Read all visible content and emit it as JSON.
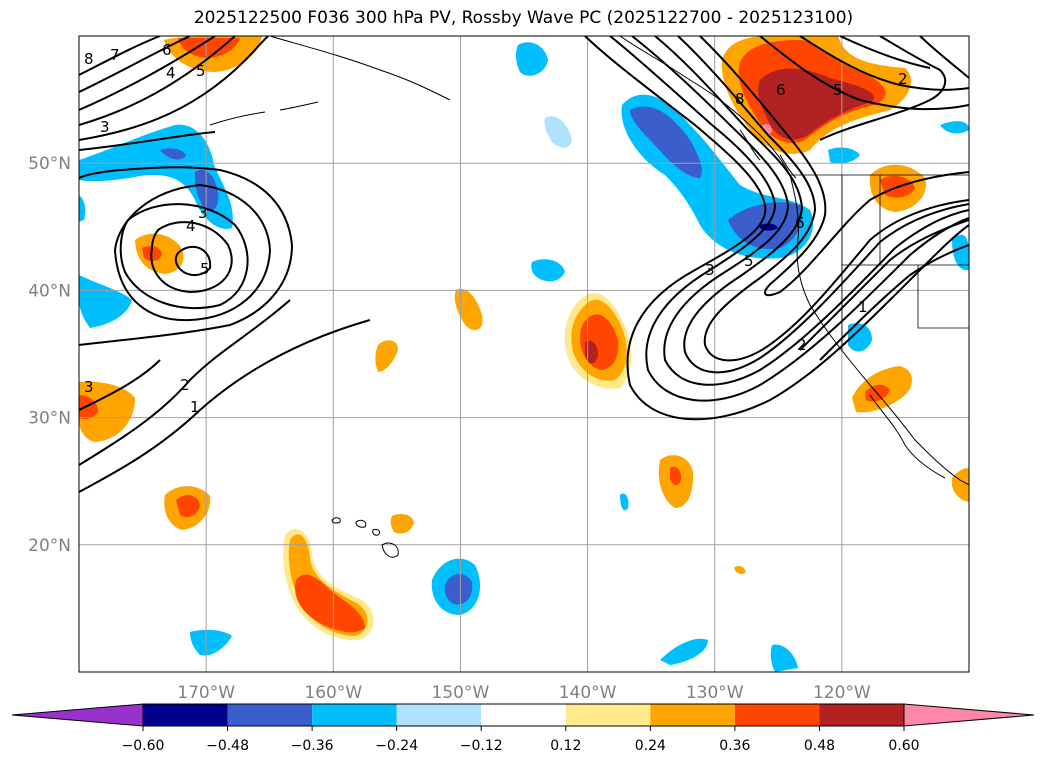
{
  "chart_data": {
    "type": "contour-map",
    "title": "2025122500 F036 300 hPa PV, Rossby Wave PC (2025122700 - 2025123100)",
    "map": {
      "lon_range": [
        -180,
        -110
      ],
      "lat_range": [
        10,
        60
      ],
      "lat_ticks": [
        20,
        30,
        40,
        50
      ],
      "lat_labels": [
        "20°N",
        "30°N",
        "40°N",
        "50°N"
      ],
      "lon_ticks": [
        -170,
        -160,
        -150,
        -140,
        -130,
        -120
      ],
      "lon_labels": [
        "170°W",
        "160°W",
        "150°W",
        "140°W",
        "130°W",
        "120°W"
      ],
      "grid": true
    },
    "colorbar": {
      "levels": [
        -0.6,
        -0.48,
        -0.36,
        -0.24,
        -0.12,
        0.12,
        0.24,
        0.36,
        0.48,
        0.6
      ],
      "labels": [
        "−0.60",
        "−0.48",
        "−0.36",
        "−0.24",
        "−0.12",
        "0.12",
        "0.24",
        "0.36",
        "0.48",
        "0.60"
      ],
      "colors": [
        "#9932cc",
        "#00008b",
        "#3a5fcd",
        "#00bfff",
        "#b0e2ff",
        "#ffffff",
        "#ffe98a",
        "#ffa500",
        "#ff4500",
        "#b22222",
        "#ff88aa"
      ],
      "extend": "both"
    },
    "filled_anomalies": [
      {
        "name": "neg-nw-pacific-ridge",
        "sign": "negative",
        "peak": -0.5,
        "center": [
          -171,
          48
        ]
      },
      {
        "name": "neg-west-edge",
        "sign": "negative",
        "peak": -0.3,
        "center": [
          -179,
          39
        ]
      },
      {
        "name": "neg-gulf-of-alaska",
        "sign": "negative",
        "peak": -0.5,
        "center": [
          -131,
          51
        ]
      },
      {
        "name": "neg-pacific-nw-coast",
        "sign": "negative",
        "peak": -0.5,
        "center": [
          -125,
          46
        ]
      },
      {
        "name": "neg-hawaii-south",
        "sign": "negative",
        "peak": -0.4,
        "center": [
          -150,
          17
        ]
      },
      {
        "name": "pos-nw-pacific-small",
        "sign": "positive",
        "peak": 0.4,
        "center": [
          -171,
          42
        ]
      },
      {
        "name": "pos-west-edge",
        "sign": "positive",
        "peak": 0.3,
        "center": [
          -178,
          31
        ]
      },
      {
        "name": "pos-central-pacific",
        "sign": "positive",
        "peak": 0.52,
        "center": [
          -140,
          37
        ]
      },
      {
        "name": "pos-british-columbia",
        "sign": "positive",
        "peak": 0.6,
        "center": [
          -124,
          56
        ]
      },
      {
        "name": "pos-south-of-hawaii",
        "sign": "positive",
        "peak": 0.45,
        "center": [
          -159,
          16
        ]
      },
      {
        "name": "pos-baja",
        "sign": "positive",
        "peak": 0.4,
        "center": [
          -115,
          32
        ]
      },
      {
        "name": "pos-great-basin",
        "sign": "positive",
        "peak": 0.35,
        "center": [
          -115,
          48
        ]
      }
    ],
    "pv_contours": {
      "field": "300 hPa PV (PVU)",
      "labels_visible": [
        "1",
        "2",
        "3",
        "4",
        "5",
        "6",
        "7",
        "8"
      ]
    }
  }
}
